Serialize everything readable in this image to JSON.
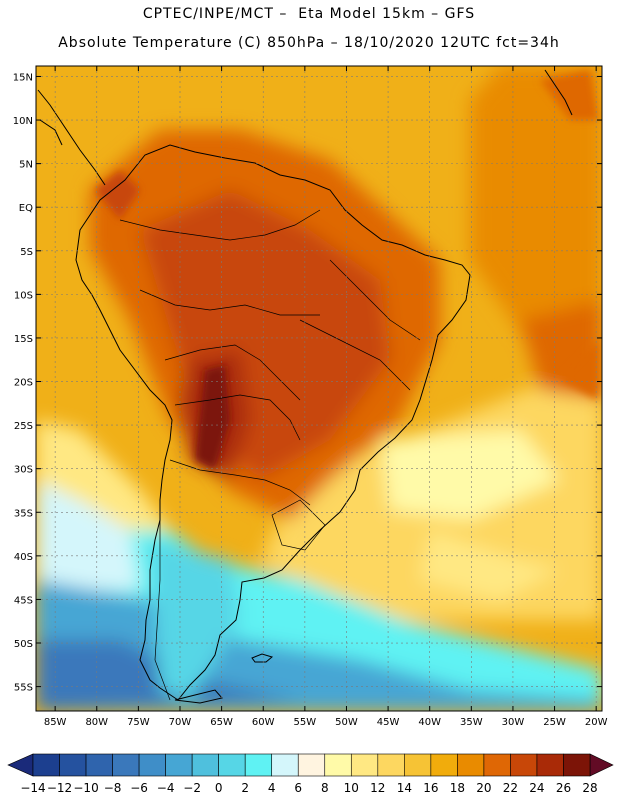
{
  "header": {
    "line1": "CPTEC/INPE/MCT –  Eta Model 15km – GFS",
    "line2": "Absolute Temperature (C) 850hPa – 18/10/2020 12UTC fct=34h"
  },
  "map": {
    "lat_labels": [
      "15N",
      "10N",
      "5N",
      "EQ",
      "5S",
      "10S",
      "15S",
      "20S",
      "25S",
      "30S",
      "35S",
      "40S",
      "45S",
      "50S",
      "55S"
    ],
    "lon_labels": [
      "85W",
      "80W",
      "75W",
      "70W",
      "65W",
      "60W",
      "55W",
      "50W",
      "45W",
      "40W",
      "35W",
      "30W",
      "25W",
      "20W"
    ],
    "lat_values": [
      15,
      10,
      5,
      0,
      -5,
      -10,
      -15,
      -20,
      -25,
      -30,
      -35,
      -40,
      -45,
      -50,
      -55
    ],
    "lon_values": [
      -85,
      -80,
      -75,
      -70,
      -65,
      -60,
      -55,
      -50,
      -45,
      -40,
      -35,
      -30,
      -25,
      -20
    ]
  },
  "colorbar": {
    "labels": [
      "-14",
      "-12",
      "-10",
      "-8",
      "-6",
      "-4",
      "-2",
      "0",
      "2",
      "4",
      "6",
      "8",
      "10",
      "12",
      "14",
      "16",
      "18",
      "20",
      "22",
      "24",
      "26",
      "28"
    ],
    "colors": [
      "#1c3f8f",
      "#25529f",
      "#2f64ad",
      "#3a78bb",
      "#3f8ec8",
      "#46a6d4",
      "#4fc0dd",
      "#56d6e6",
      "#5ff2f3",
      "#d4f6fb",
      "#fff4e0",
      "#fffaa8",
      "#ffe883",
      "#fdd760",
      "#f6c335",
      "#f1ac0c",
      "#e98b00",
      "#df6705",
      "#c84708",
      "#a92a07",
      "#7c1407"
    ],
    "end_colors": [
      "#1a2a7a",
      "#620b25"
    ]
  }
}
